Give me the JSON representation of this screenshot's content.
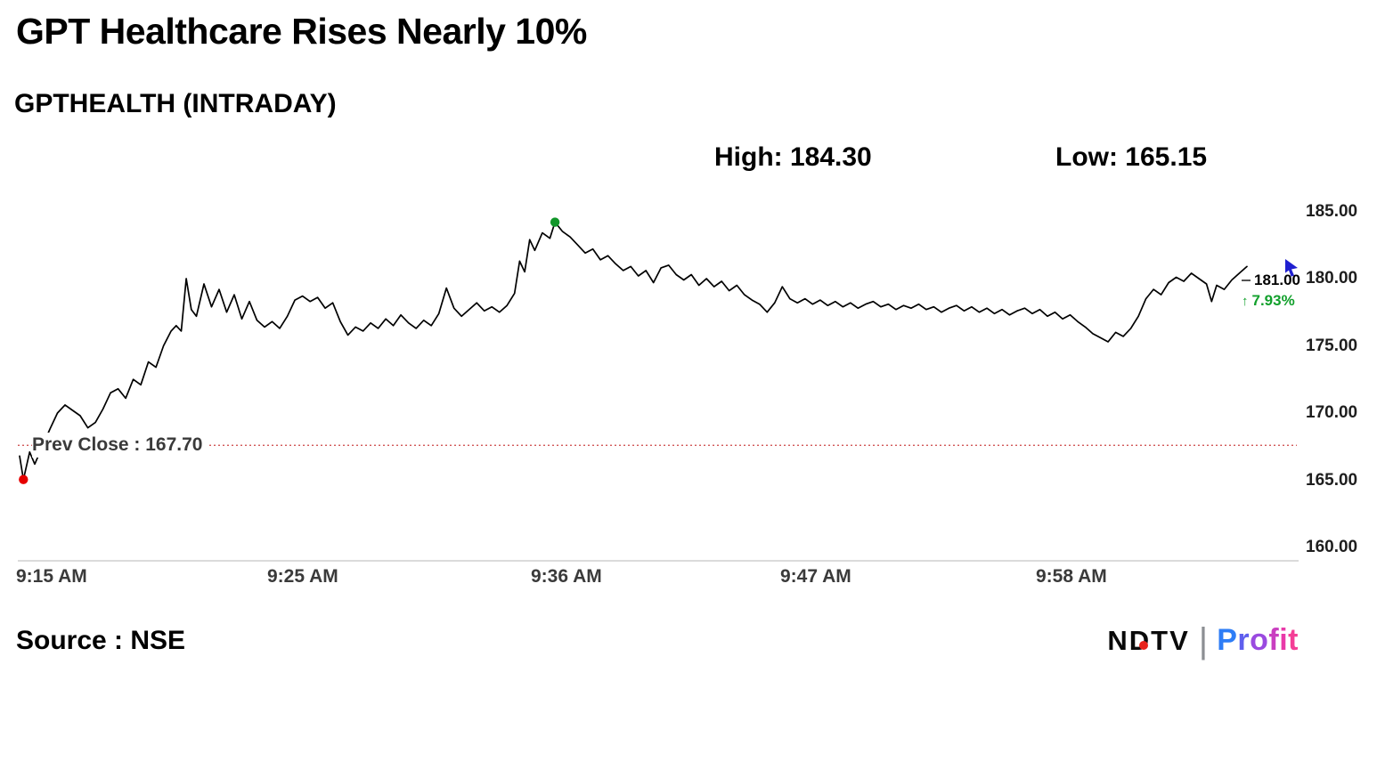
{
  "header": {
    "title": "GPT Healthcare Rises Nearly 10%",
    "subtitle": "GPTHEALTH (INTRADAY)",
    "high": "High: 184.30",
    "low": "Low: 165.15"
  },
  "footer": {
    "source": "Source : NSE",
    "ndtv": "NDTV",
    "divider": "|",
    "profit": "Profit",
    "profit_colors": [
      "#2e7df6",
      "#5f5fee",
      "#9a4ae0",
      "#c93fc0",
      "#e93aa8",
      "#f43f96"
    ]
  },
  "chart_data": {
    "type": "line",
    "title": "GPT Healthcare Rises Nearly 10%",
    "subtitle": "GPTHEALTH (INTRADAY)",
    "symbol": "GPTHEALTH",
    "high": 184.3,
    "low": 165.15,
    "prev_close": 167.7,
    "prev_close_label": "Prev Close : 167.70",
    "last_price": 181.0,
    "last_price_label": "181.00",
    "change_label": "7.93%",
    "up_arrow": "↑",
    "ylim": [
      160,
      185
    ],
    "y_ticks": [
      185,
      180,
      175,
      170,
      165,
      160
    ],
    "y_tick_labels": [
      "185.00",
      "180.00",
      "175.00",
      "170.00",
      "165.00",
      "160.00"
    ],
    "x_tick_labels": [
      "9:15 AM",
      "9:25 AM",
      "9:36 AM",
      "9:47 AM",
      "9:58 AM"
    ],
    "colors": {
      "line": "#000000",
      "prev_close": "#cc4444",
      "high_marker": "#12962a",
      "low_marker": "#e60000",
      "change_text": "#12a02c"
    },
    "markers": [
      {
        "name": "low-marker",
        "t": 0.15,
        "price": 165.15,
        "color": "#e60000"
      },
      {
        "name": "high-marker",
        "t": 21.2,
        "price": 184.3,
        "color": "#12962a"
      }
    ],
    "series": [
      {
        "name": "GPTHEALTH intraday price",
        "points": [
          [
            0.0,
            166.9
          ],
          [
            0.15,
            165.15
          ],
          [
            0.4,
            167.2
          ],
          [
            0.6,
            166.3
          ],
          [
            0.9,
            167.6
          ],
          [
            1.2,
            168.9
          ],
          [
            1.5,
            170.1
          ],
          [
            1.8,
            170.7
          ],
          [
            2.1,
            170.3
          ],
          [
            2.4,
            169.9
          ],
          [
            2.7,
            169.0
          ],
          [
            3.0,
            169.4
          ],
          [
            3.3,
            170.4
          ],
          [
            3.6,
            171.6
          ],
          [
            3.9,
            171.9
          ],
          [
            4.2,
            171.2
          ],
          [
            4.5,
            172.6
          ],
          [
            4.8,
            172.2
          ],
          [
            5.1,
            173.9
          ],
          [
            5.4,
            173.5
          ],
          [
            5.7,
            175.1
          ],
          [
            6.0,
            176.2
          ],
          [
            6.2,
            176.6
          ],
          [
            6.4,
            176.2
          ],
          [
            6.6,
            180.1
          ],
          [
            6.8,
            177.8
          ],
          [
            7.0,
            177.3
          ],
          [
            7.3,
            179.7
          ],
          [
            7.6,
            178.0
          ],
          [
            7.9,
            179.3
          ],
          [
            8.2,
            177.6
          ],
          [
            8.5,
            178.9
          ],
          [
            8.8,
            177.1
          ],
          [
            9.1,
            178.4
          ],
          [
            9.4,
            177.0
          ],
          [
            9.7,
            176.5
          ],
          [
            10.0,
            176.9
          ],
          [
            10.3,
            176.4
          ],
          [
            10.6,
            177.3
          ],
          [
            10.9,
            178.5
          ],
          [
            11.2,
            178.8
          ],
          [
            11.5,
            178.4
          ],
          [
            11.8,
            178.7
          ],
          [
            12.1,
            177.9
          ],
          [
            12.4,
            178.3
          ],
          [
            12.7,
            176.9
          ],
          [
            13.0,
            175.9
          ],
          [
            13.3,
            176.5
          ],
          [
            13.6,
            176.2
          ],
          [
            13.9,
            176.8
          ],
          [
            14.2,
            176.4
          ],
          [
            14.5,
            177.1
          ],
          [
            14.8,
            176.6
          ],
          [
            15.1,
            177.4
          ],
          [
            15.4,
            176.8
          ],
          [
            15.7,
            176.4
          ],
          [
            16.0,
            177.0
          ],
          [
            16.3,
            176.6
          ],
          [
            16.6,
            177.5
          ],
          [
            16.9,
            179.4
          ],
          [
            17.2,
            177.9
          ],
          [
            17.5,
            177.3
          ],
          [
            17.8,
            177.8
          ],
          [
            18.1,
            178.3
          ],
          [
            18.4,
            177.7
          ],
          [
            18.7,
            178.0
          ],
          [
            19.0,
            177.6
          ],
          [
            19.3,
            178.1
          ],
          [
            19.6,
            179.0
          ],
          [
            19.8,
            181.4
          ],
          [
            20.0,
            180.6
          ],
          [
            20.2,
            183.0
          ],
          [
            20.4,
            182.2
          ],
          [
            20.7,
            183.5
          ],
          [
            21.0,
            183.1
          ],
          [
            21.2,
            184.3
          ],
          [
            21.5,
            183.6
          ],
          [
            21.8,
            183.2
          ],
          [
            22.1,
            182.6
          ],
          [
            22.4,
            182.0
          ],
          [
            22.7,
            182.3
          ],
          [
            23.0,
            181.5
          ],
          [
            23.3,
            181.8
          ],
          [
            23.6,
            181.2
          ],
          [
            23.9,
            180.7
          ],
          [
            24.2,
            181.0
          ],
          [
            24.5,
            180.3
          ],
          [
            24.8,
            180.7
          ],
          [
            25.1,
            179.8
          ],
          [
            25.4,
            180.9
          ],
          [
            25.7,
            181.1
          ],
          [
            26.0,
            180.4
          ],
          [
            26.3,
            180.0
          ],
          [
            26.6,
            180.4
          ],
          [
            26.9,
            179.6
          ],
          [
            27.2,
            180.1
          ],
          [
            27.5,
            179.5
          ],
          [
            27.8,
            179.9
          ],
          [
            28.1,
            179.2
          ],
          [
            28.4,
            179.6
          ],
          [
            28.7,
            178.9
          ],
          [
            29.0,
            178.5
          ],
          [
            29.3,
            178.2
          ],
          [
            29.6,
            177.6
          ],
          [
            29.9,
            178.3
          ],
          [
            30.2,
            179.5
          ],
          [
            30.5,
            178.6
          ],
          [
            30.8,
            178.3
          ],
          [
            31.1,
            178.6
          ],
          [
            31.4,
            178.2
          ],
          [
            31.7,
            178.5
          ],
          [
            32.0,
            178.1
          ],
          [
            32.3,
            178.4
          ],
          [
            32.6,
            178.0
          ],
          [
            32.9,
            178.3
          ],
          [
            33.2,
            177.9
          ],
          [
            33.5,
            178.2
          ],
          [
            33.8,
            178.4
          ],
          [
            34.1,
            178.0
          ],
          [
            34.4,
            178.2
          ],
          [
            34.7,
            177.8
          ],
          [
            35.0,
            178.1
          ],
          [
            35.3,
            177.9
          ],
          [
            35.6,
            178.2
          ],
          [
            35.9,
            177.8
          ],
          [
            36.2,
            178.0
          ],
          [
            36.5,
            177.6
          ],
          [
            36.8,
            177.9
          ],
          [
            37.1,
            178.1
          ],
          [
            37.4,
            177.7
          ],
          [
            37.7,
            178.0
          ],
          [
            38.0,
            177.6
          ],
          [
            38.3,
            177.9
          ],
          [
            38.6,
            177.5
          ],
          [
            38.9,
            177.8
          ],
          [
            39.2,
            177.4
          ],
          [
            39.5,
            177.7
          ],
          [
            39.8,
            177.9
          ],
          [
            40.1,
            177.5
          ],
          [
            40.4,
            177.8
          ],
          [
            40.7,
            177.3
          ],
          [
            41.0,
            177.6
          ],
          [
            41.3,
            177.1
          ],
          [
            41.6,
            177.4
          ],
          [
            41.9,
            176.9
          ],
          [
            42.2,
            176.5
          ],
          [
            42.5,
            176.0
          ],
          [
            42.8,
            175.7
          ],
          [
            43.1,
            175.4
          ],
          [
            43.4,
            176.1
          ],
          [
            43.7,
            175.8
          ],
          [
            44.0,
            176.4
          ],
          [
            44.3,
            177.3
          ],
          [
            44.6,
            178.6
          ],
          [
            44.9,
            179.3
          ],
          [
            45.2,
            178.9
          ],
          [
            45.5,
            179.8
          ],
          [
            45.8,
            180.2
          ],
          [
            46.1,
            179.9
          ],
          [
            46.4,
            180.5
          ],
          [
            46.7,
            180.1
          ],
          [
            47.0,
            179.7
          ],
          [
            47.2,
            178.4
          ],
          [
            47.4,
            179.6
          ],
          [
            47.7,
            179.3
          ],
          [
            48.0,
            180.0
          ],
          [
            48.3,
            180.5
          ],
          [
            48.6,
            181.0
          ]
        ]
      }
    ]
  }
}
